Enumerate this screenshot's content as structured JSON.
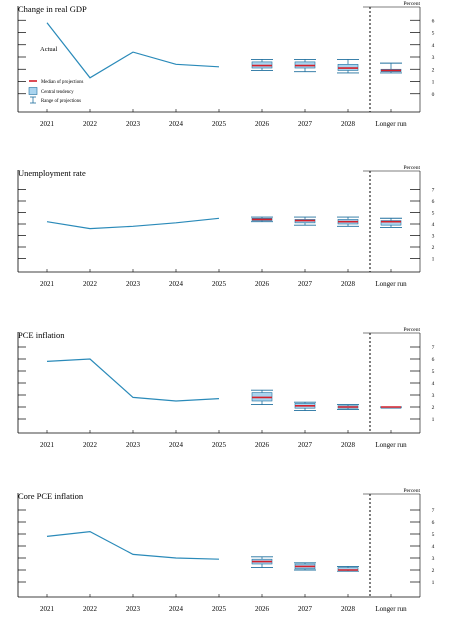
{
  "chart_data": [
    {
      "type": "line",
      "title": "Change in real GDP",
      "unit_label": "Percent",
      "categories": [
        "2021",
        "2022",
        "2023",
        "2024",
        "2025",
        "2026",
        "2027",
        "2028",
        "Longer run"
      ],
      "ylim": [
        -1,
        7
      ],
      "y_ticks": [
        "0",
        "1",
        "2",
        "3",
        "4",
        "5",
        "6"
      ],
      "series": [
        {
          "name": "Actual",
          "values": [
            5.8,
            1.3,
            3.4,
            2.4,
            2.2,
            null,
            null,
            null,
            null
          ]
        }
      ],
      "median": [
        null,
        null,
        null,
        null,
        null,
        2.3,
        2.3,
        2.1,
        1.9
      ],
      "central_tendency": [
        null,
        null,
        null,
        null,
        null,
        [
          2.1,
          2.6
        ],
        [
          2.1,
          2.6
        ],
        [
          1.9,
          2.4
        ],
        [
          1.8,
          2.0
        ]
      ],
      "range": [
        null,
        null,
        null,
        null,
        null,
        [
          1.9,
          2.8
        ],
        [
          1.8,
          2.8
        ],
        [
          1.7,
          2.8
        ],
        [
          1.7,
          2.5
        ]
      ],
      "legend": [
        {
          "kind": "median",
          "label": "Median of projections"
        },
        {
          "kind": "central",
          "label": "Central tendency"
        },
        {
          "kind": "range",
          "label": "Range of projections"
        }
      ]
    },
    {
      "type": "line",
      "title": "Unemployment rate",
      "unit_label": "Percent",
      "categories": [
        "2021",
        "2022",
        "2023",
        "2024",
        "2025",
        "2026",
        "2027",
        "2028",
        "Longer run"
      ],
      "ylim": [
        0,
        8
      ],
      "y_ticks": [
        "1",
        "2",
        "3",
        "4",
        "5",
        "6",
        "7"
      ],
      "series": [
        {
          "values": [
            4.2,
            3.6,
            3.8,
            4.1,
            4.5,
            null,
            null,
            null,
            null
          ]
        }
      ],
      "median": [
        null,
        null,
        null,
        null,
        null,
        4.4,
        4.3,
        4.2,
        4.2
      ],
      "central_tendency": [
        null,
        null,
        null,
        null,
        null,
        [
          4.3,
          4.5
        ],
        [
          4.1,
          4.4
        ],
        [
          4.0,
          4.4
        ],
        [
          3.9,
          4.3
        ]
      ],
      "range": [
        null,
        null,
        null,
        null,
        null,
        [
          4.2,
          4.6
        ],
        [
          3.9,
          4.6
        ],
        [
          3.8,
          4.6
        ],
        [
          3.7,
          4.5
        ]
      ]
    },
    {
      "type": "line",
      "title": "PCE inflation",
      "unit_label": "Percent",
      "categories": [
        "2021",
        "2022",
        "2023",
        "2024",
        "2025",
        "2026",
        "2027",
        "2028",
        "Longer run"
      ],
      "ylim": [
        0,
        8
      ],
      "y_ticks": [
        "1",
        "2",
        "3",
        "4",
        "5",
        "6",
        "7"
      ],
      "series": [
        {
          "values": [
            5.8,
            6.0,
            2.8,
            2.5,
            2.7,
            null,
            null,
            null,
            null
          ]
        }
      ],
      "median": [
        null,
        null,
        null,
        null,
        null,
        2.8,
        2.1,
        2.0,
        2.0
      ],
      "central_tendency": [
        null,
        null,
        null,
        null,
        null,
        [
          2.5,
          3.2
        ],
        [
          1.9,
          2.3
        ],
        [
          1.9,
          2.1
        ],
        [
          2.0,
          2.0
        ]
      ],
      "range": [
        null,
        null,
        null,
        null,
        null,
        [
          2.2,
          3.4
        ],
        [
          1.7,
          2.4
        ],
        [
          1.8,
          2.2
        ],
        [
          2.0,
          2.0
        ]
      ]
    },
    {
      "type": "line",
      "title": "Core PCE inflation",
      "unit_label": "Percent",
      "categories": [
        "2021",
        "2022",
        "2023",
        "2024",
        "2025",
        "2026",
        "2027",
        "2028",
        "Longer run"
      ],
      "ylim": [
        0,
        8
      ],
      "y_ticks": [
        "1",
        "2",
        "3",
        "4",
        "5",
        "6",
        "7"
      ],
      "series": [
        {
          "values": [
            4.8,
            5.2,
            3.3,
            3.0,
            2.9,
            null,
            null,
            null,
            null
          ]
        }
      ],
      "median": [
        null,
        null,
        null,
        null,
        null,
        2.7,
        2.3,
        2.0,
        null
      ],
      "central_tendency": [
        null,
        null,
        null,
        null,
        null,
        [
          2.5,
          2.9
        ],
        [
          2.1,
          2.5
        ],
        [
          2.0,
          2.2
        ],
        null
      ],
      "range": [
        null,
        null,
        null,
        null,
        null,
        [
          2.2,
          3.1
        ],
        [
          2.0,
          2.6
        ],
        [
          1.9,
          2.3
        ],
        null
      ]
    }
  ]
}
